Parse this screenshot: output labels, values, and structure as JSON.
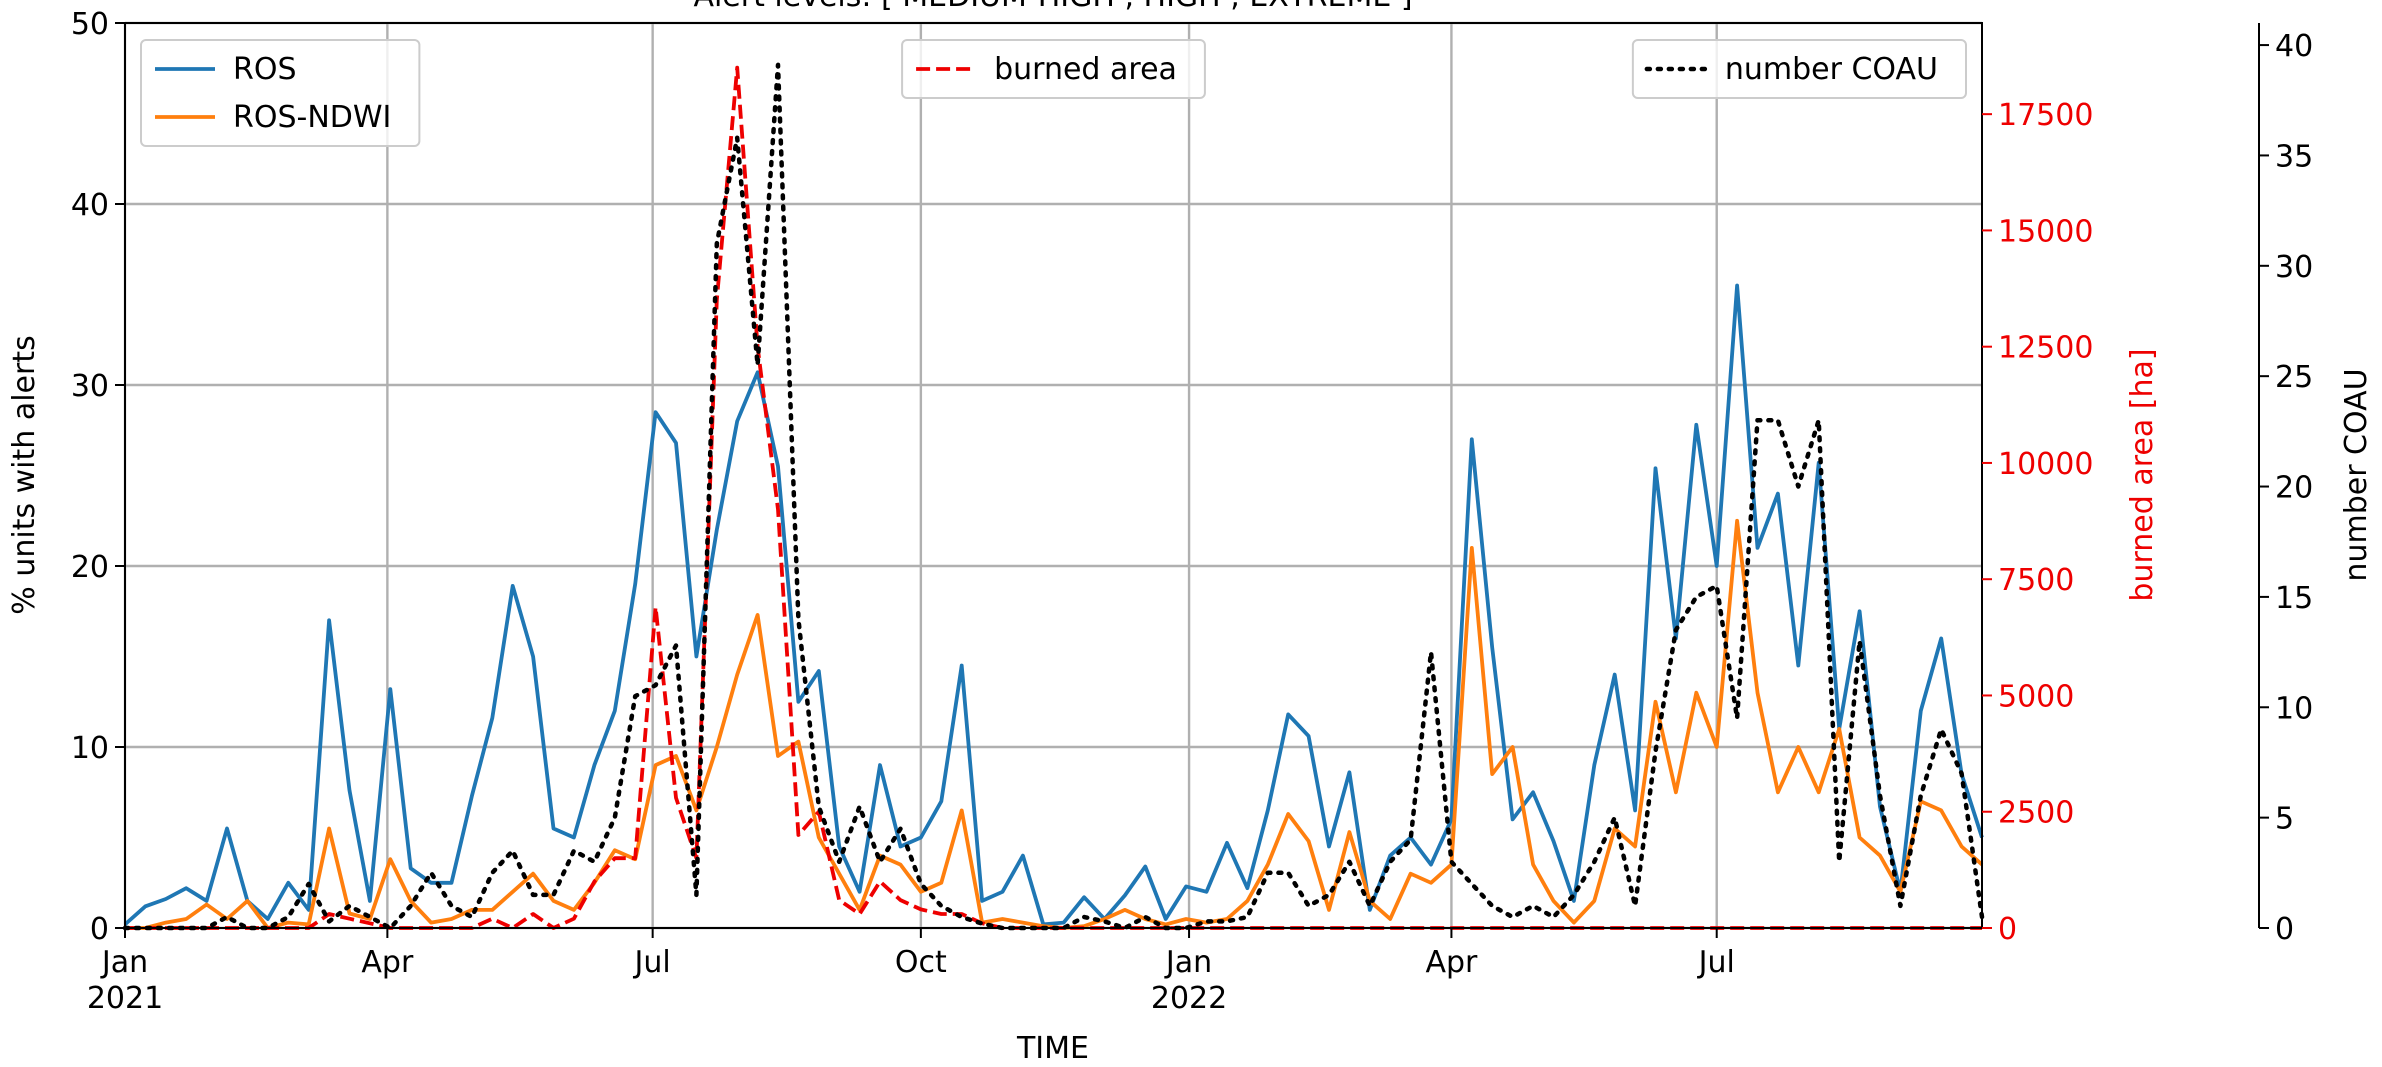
{
  "chart_data": {
    "type": "line",
    "title": "Alert levels: [ MEDIUM-HIGH , HIGH , EXTREME ]",
    "xlabel": "TIME",
    "ylabel": "% units with alerts",
    "y2label": "burned area [ha]",
    "y3label": "number COAU",
    "x": [
      0,
      7,
      14,
      21,
      28,
      35,
      42,
      49,
      56,
      63,
      70,
      77,
      84,
      91,
      98,
      105,
      112,
      119,
      126,
      133,
      140,
      147,
      154,
      161,
      168,
      175,
      182,
      189,
      196,
      203,
      210,
      217,
      224,
      231,
      238,
      245,
      252,
      259,
      266,
      273,
      280,
      287,
      294,
      301,
      308,
      315,
      322,
      329,
      336,
      343,
      350,
      357,
      364,
      371,
      378,
      385,
      392,
      399,
      406,
      413,
      420,
      427,
      434,
      441,
      448,
      455,
      462,
      469,
      476,
      483,
      490,
      497,
      504,
      511,
      518,
      525,
      532,
      539,
      546,
      553,
      560,
      567,
      574,
      581,
      588,
      595,
      602,
      609,
      616,
      623,
      630,
      637
    ],
    "xlim": [
      0,
      637
    ],
    "xticks": [
      {
        "value": 0,
        "label": "Jan\n2021"
      },
      {
        "value": 90,
        "label": "Apr"
      },
      {
        "value": 181,
        "label": "Jul"
      },
      {
        "value": 273,
        "label": "Oct"
      },
      {
        "value": 365,
        "label": "Jan\n2022"
      },
      {
        "value": 455,
        "label": "Apr"
      },
      {
        "value": 546,
        "label": "Jul"
      }
    ],
    "ylim": [
      0,
      50
    ],
    "yticks": [
      0,
      10,
      20,
      30,
      40,
      50
    ],
    "y2lim": [
      0,
      19460
    ],
    "y2ticks": [
      0,
      2500,
      5000,
      7500,
      10000,
      12500,
      15000,
      17500
    ],
    "y3lim": [
      0,
      41
    ],
    "y3ticks": [
      0,
      5,
      10,
      15,
      20,
      25,
      30,
      35,
      40
    ],
    "grid": true,
    "series": [
      {
        "name": "ROS",
        "color": "#1f77b4",
        "axis": "y",
        "linestyle": "solid",
        "legend": "upper left",
        "values": [
          0.2,
          1.2,
          1.6,
          2.2,
          1.5,
          5.5,
          1.5,
          0.5,
          2.5,
          1,
          17,
          7.6,
          1.5,
          13.2,
          3.3,
          2.5,
          2.5,
          7.3,
          11.6,
          18.9,
          15,
          5.5,
          5,
          9,
          12,
          19,
          28.5,
          26.8,
          15,
          22,
          28,
          30.7,
          25.5,
          12.5,
          14.2,
          4.5,
          2,
          9,
          4.5,
          5,
          7,
          14.5,
          1.5,
          2,
          4,
          0.2,
          0.3,
          1.7,
          0.5,
          1.8,
          3.4,
          0.5,
          2.3,
          2,
          4.7,
          2.2,
          6.5,
          11.8,
          10.6,
          4.5,
          8.6,
          1,
          4,
          5,
          3.5,
          6,
          27,
          15.5,
          6,
          7.5,
          4.8,
          1.5,
          9,
          14,
          6.5,
          25.4,
          16,
          27.8,
          20,
          35.5,
          21,
          24,
          14.5,
          25.7,
          11,
          17.5,
          6.7,
          2,
          12,
          16,
          8.5,
          5
        ]
      },
      {
        "name": "ROS-NDWI",
        "color": "#ff7f0e",
        "axis": "y",
        "linestyle": "solid",
        "legend": "upper left",
        "values": [
          0,
          0,
          0.3,
          0.5,
          1.3,
          0.5,
          1.5,
          0,
          0.3,
          0.2,
          5.5,
          0.8,
          0.5,
          3.8,
          1.5,
          0.3,
          0.5,
          1,
          1,
          2,
          3,
          1.5,
          1,
          2.5,
          4.3,
          3.8,
          9,
          9.5,
          6.5,
          10,
          14,
          17.3,
          9.5,
          10.3,
          5,
          3,
          1,
          4,
          3.5,
          2,
          2.5,
          6.5,
          0.3,
          0.5,
          0.3,
          0.1,
          0,
          0.1,
          0.5,
          1,
          0.5,
          0.2,
          0.5,
          0.3,
          0.5,
          1.5,
          3.5,
          6.3,
          4.8,
          1,
          5.3,
          1.5,
          0.5,
          3,
          2.5,
          3.5,
          21,
          8.5,
          10,
          3.5,
          1.5,
          0.3,
          1.5,
          5.5,
          4.5,
          12.5,
          7.5,
          13,
          10,
          22.5,
          13,
          7.5,
          10,
          7.5,
          11,
          5,
          4,
          2,
          7,
          6.5,
          4.5,
          3.5
        ]
      },
      {
        "name": "burned area",
        "color": "#ee0000",
        "axis": "y2",
        "linestyle": "dashed",
        "legend": "upper center",
        "values": [
          0,
          0,
          0,
          0,
          0,
          0,
          0,
          0,
          0,
          0,
          300,
          200,
          100,
          0,
          0,
          0,
          0,
          0,
          200,
          0,
          300,
          0,
          200,
          1000,
          1500,
          1500,
          6900,
          2800,
          1500,
          13500,
          18500,
          12500,
          9000,
          2000,
          2500,
          600,
          300,
          1000,
          600,
          400,
          300,
          300,
          100,
          0,
          0,
          0,
          0,
          0,
          0,
          0,
          0,
          0,
          0,
          0,
          0,
          0,
          0,
          0,
          0,
          0,
          0,
          0,
          0,
          0,
          0,
          0,
          0,
          0,
          0,
          0,
          0,
          0,
          0,
          0,
          0,
          0,
          0,
          0,
          0,
          0,
          0,
          0,
          0,
          0,
          0,
          0,
          0,
          0,
          0,
          0,
          0,
          0
        ]
      },
      {
        "name": "number COAU",
        "color": "#000000",
        "axis": "y3",
        "linestyle": "dotted",
        "legend": "upper right",
        "values": [
          0,
          0,
          0,
          0,
          0,
          0.5,
          0,
          0,
          0.5,
          2,
          0.3,
          1,
          0.5,
          0,
          1,
          2.5,
          1,
          0.5,
          2.5,
          3.5,
          1.5,
          1.5,
          3.5,
          3,
          5,
          10.5,
          11,
          12.8,
          1.5,
          31,
          35.8,
          25.5,
          39.1,
          14,
          5.5,
          3,
          5.5,
          3,
          4.5,
          2,
          1,
          0.5,
          0.2,
          0,
          0,
          0,
          0,
          0.5,
          0.3,
          0,
          0.5,
          0,
          0,
          0.3,
          0.3,
          0.5,
          2.5,
          2.5,
          1,
          1.5,
          3,
          1,
          3,
          4,
          12.5,
          3,
          2,
          1,
          0.5,
          1,
          0.5,
          1.5,
          3,
          5,
          1,
          8,
          13.5,
          15,
          15.5,
          9.5,
          23,
          23,
          20,
          23,
          3,
          13,
          6,
          1,
          6,
          9,
          7,
          0.5
        ]
      }
    ]
  }
}
